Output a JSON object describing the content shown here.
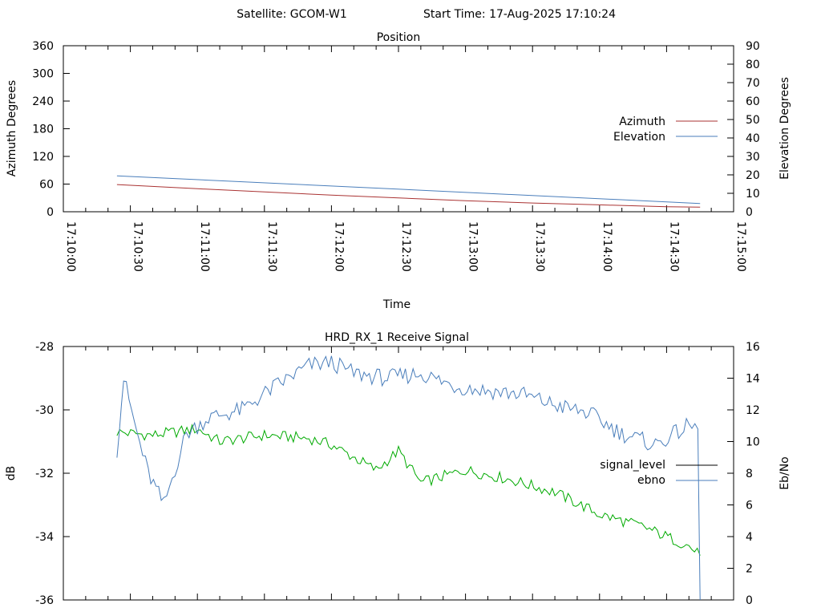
{
  "header": {
    "satellite": "Satellite: GCOM-W1",
    "start_time": "Start Time: 17-Aug-2025 17:10:24"
  },
  "chart_data": [
    {
      "type": "line",
      "title": "Position",
      "xlabel": "Time",
      "ylabel": "Azimuth Degrees",
      "y2label": "Elevation Degrees",
      "xlim": [
        "17:10:00",
        "17:15:00"
      ],
      "ylim": [
        0,
        360
      ],
      "y2lim": [
        0,
        90
      ],
      "xticks": [
        "17:10:00",
        "17:10:30",
        "17:11:00",
        "17:11:30",
        "17:12:00",
        "17:12:30",
        "17:13:00",
        "17:13:30",
        "17:14:00",
        "17:14:30",
        "17:15:00"
      ],
      "yticks": [
        "0",
        "60",
        "120",
        "180",
        "240",
        "300",
        "360"
      ],
      "y2ticks": [
        "0",
        "10",
        "20",
        "30",
        "40",
        "50",
        "60",
        "70",
        "80",
        "90"
      ],
      "grid": false,
      "legend_position": "right",
      "series": [
        {
          "name": "Azimuth",
          "axis": "y",
          "color": "#aa3333",
          "x": [
            "17:10:24",
            "17:11:00",
            "17:11:30",
            "17:12:00",
            "17:12:30",
            "17:13:00",
            "17:13:30",
            "17:14:00",
            "17:14:30",
            "17:14:45"
          ],
          "values": [
            59,
            50,
            43,
            36,
            30,
            24,
            19,
            15,
            11,
            10
          ]
        },
        {
          "name": "Elevation",
          "axis": "y2",
          "color": "#4a7ebb",
          "x": [
            "17:10:24",
            "17:14:45"
          ],
          "values": [
            19.5,
            4.5
          ]
        }
      ]
    },
    {
      "type": "line",
      "title": "HRD_RX_1 Receive Signal",
      "ylabel": "dB",
      "y2label": "Eb/No",
      "xlim": [
        "17:10:00",
        "17:15:00"
      ],
      "ylim": [
        -36,
        -28
      ],
      "y2lim": [
        0,
        16
      ],
      "yticks": [
        "-28",
        "-30",
        "-32",
        "-34",
        "-36"
      ],
      "y2ticks": [
        "0",
        "2",
        "4",
        "6",
        "8",
        "10",
        "12",
        "14",
        "16"
      ],
      "grid": false,
      "legend_position": "right",
      "series": [
        {
          "name": "signal_level",
          "axis": "y",
          "color": "#000000",
          "legend_color": "#000000",
          "trace_color": "#00aa00",
          "x": [
            "17:10:24",
            "17:10:40",
            "17:11:00",
            "17:11:10",
            "17:11:30",
            "17:11:50",
            "17:12:00",
            "17:12:20",
            "17:12:30",
            "17:12:40",
            "17:13:00",
            "17:13:20",
            "17:13:40",
            "17:14:00",
            "17:14:20",
            "17:14:40",
            "17:14:45"
          ],
          "values": [
            -30.7,
            -30.8,
            -30.6,
            -31.0,
            -30.8,
            -30.9,
            -31.1,
            -31.9,
            -31.3,
            -32.3,
            -31.9,
            -32.2,
            -32.6,
            -33.3,
            -33.7,
            -34.3,
            -34.6
          ]
        },
        {
          "name": "ebno",
          "axis": "y2",
          "color": "#4a7ebb",
          "x": [
            "17:10:24",
            "17:10:27",
            "17:10:33",
            "17:10:38",
            "17:10:45",
            "17:10:55",
            "17:11:05",
            "17:11:20",
            "17:11:35",
            "17:11:50",
            "17:12:00",
            "17:12:10",
            "17:12:25",
            "17:12:40",
            "17:12:55",
            "17:13:10",
            "17:13:25",
            "17:13:40",
            "17:13:55",
            "17:14:10",
            "17:14:25",
            "17:14:40",
            "17:14:44",
            "17:14:45"
          ],
          "values": [
            9.5,
            14.0,
            10.5,
            8.0,
            6.0,
            10.5,
            11.5,
            12.0,
            13.5,
            14.8,
            15.0,
            14.3,
            14.0,
            14.3,
            13.5,
            13.2,
            13.0,
            12.3,
            11.8,
            10.5,
            9.8,
            11.0,
            10.8,
            0.0
          ]
        }
      ]
    }
  ]
}
